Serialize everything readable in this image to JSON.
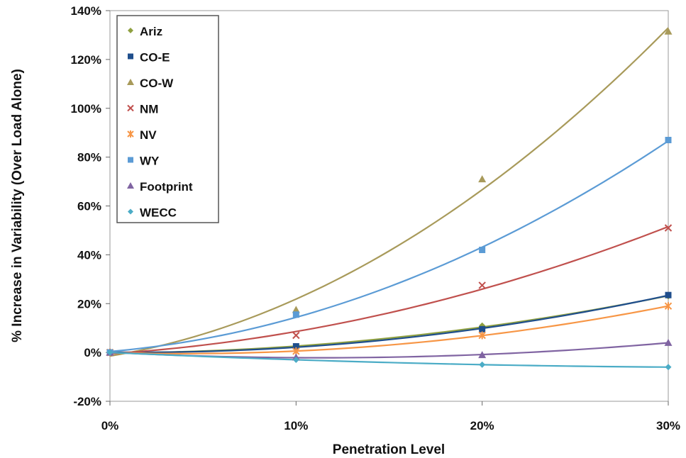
{
  "chart_data": {
    "type": "scatter",
    "title": "",
    "xlabel": "Penetration Level",
    "ylabel": "% Increase in Variability (Over Load Alone)",
    "x": [
      0,
      10,
      20,
      30
    ],
    "x_tick_labels": [
      "0%",
      "10%",
      "20%",
      "30%"
    ],
    "y_tick_labels": [
      "-20%",
      "0%",
      "20%",
      "40%",
      "60%",
      "80%",
      "100%",
      "120%",
      "140%"
    ],
    "xlim": [
      0,
      30
    ],
    "ylim": [
      -20,
      140
    ],
    "y_tick_step": 20,
    "grid": false,
    "legend_position": "top-left",
    "trendlines": "polynomial",
    "series": [
      {
        "name": "Ariz",
        "color": "#8fa040",
        "marker": "diamond",
        "values": [
          0,
          2,
          11,
          23
        ]
      },
      {
        "name": "CO-E",
        "color": "#1f4e8c",
        "marker": "square",
        "values": [
          0,
          2.5,
          9.5,
          23.5
        ]
      },
      {
        "name": "CO-W",
        "color": "#a89a5a",
        "marker": "triangle",
        "values": [
          0,
          17.5,
          71,
          131.5
        ]
      },
      {
        "name": "NM",
        "color": "#c0504d",
        "marker": "x",
        "values": [
          0,
          7,
          27.5,
          51
        ]
      },
      {
        "name": "NV",
        "color": "#f79646",
        "marker": "star",
        "values": [
          0,
          0.5,
          7,
          19
        ]
      },
      {
        "name": "WY",
        "color": "#5b9bd5",
        "marker": "square",
        "values": [
          0,
          15.5,
          42,
          87
        ]
      },
      {
        "name": "Footprint",
        "color": "#8064a2",
        "marker": "triangle",
        "values": [
          0,
          -2,
          -1,
          4
        ]
      },
      {
        "name": "WECC",
        "color": "#4bacc6",
        "marker": "diamond",
        "values": [
          0,
          -3,
          -5,
          -6
        ]
      }
    ]
  }
}
